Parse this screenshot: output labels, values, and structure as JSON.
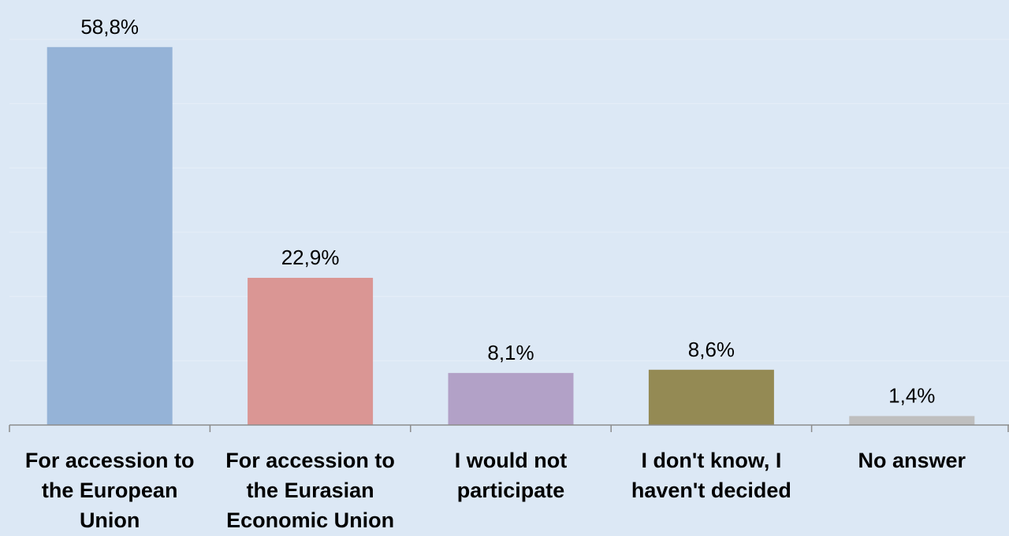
{
  "chart_data": {
    "type": "bar",
    "categories": [
      "For accession to the European Union",
      "For accession to the Eurasian Economic Union",
      "I would not participate",
      "I don't know, I haven't decided",
      "No answer"
    ],
    "values": [
      58.8,
      22.9,
      8.1,
      8.6,
      1.4
    ],
    "value_labels": [
      "58,8%",
      "22,9%",
      "8,1%",
      "8,6%",
      "1,4%"
    ],
    "colors": [
      "#95b3d7",
      "#da9694",
      "#b2a1c7",
      "#948a54",
      "#bfbfbf"
    ],
    "ylim": [
      0,
      60
    ],
    "grid": true,
    "legend": "none",
    "title": "",
    "xlabel": "",
    "ylabel": ""
  }
}
